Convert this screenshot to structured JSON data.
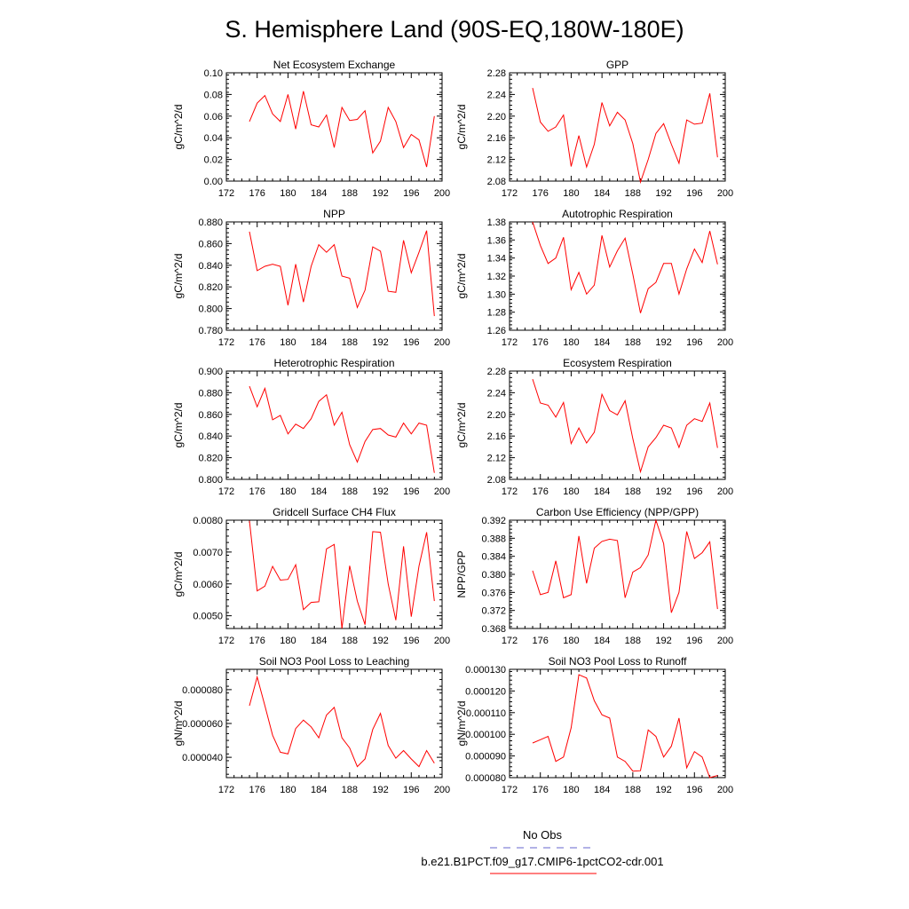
{
  "title": "S. Hemisphere Land (90S-EQ,180W-180E)",
  "colors": {
    "model": "#ff0000",
    "obs": "#6666cc"
  },
  "legend": {
    "obs_label": "No Obs",
    "model_label": "b.e21.B1PCT.f09_g17.CMIP6-1pctCO2-cdr.001"
  },
  "chart_data": [
    {
      "type": "line",
      "title": "Net Ecosystem Exchange",
      "ylabel": "gC/m^2/d",
      "xlim": [
        172,
        200
      ],
      "x_ticks": [
        "172",
        "176",
        "180",
        "184",
        "188",
        "192",
        "196",
        "200"
      ],
      "ylim": [
        0.0,
        0.1
      ],
      "y_ticks": [
        "0.00",
        "0.02",
        "0.04",
        "0.06",
        "0.08",
        "0.10"
      ],
      "series": [
        {
          "x": [
            175,
            176,
            177,
            178,
            179,
            180,
            181,
            182,
            183,
            184,
            185,
            186,
            187,
            188,
            189,
            190,
            191,
            192,
            193,
            194,
            195,
            196,
            197,
            198,
            199
          ],
          "values": [
            0.055,
            0.072,
            0.079,
            0.062,
            0.055,
            0.08,
            0.048,
            0.083,
            0.052,
            0.05,
            0.061,
            0.031,
            0.068,
            0.056,
            0.057,
            0.065,
            0.026,
            0.037,
            0.068,
            0.055,
            0.031,
            0.043,
            0.038,
            0.013,
            0.06
          ]
        }
      ]
    },
    {
      "type": "line",
      "title": "GPP",
      "ylabel": "gC/m^2/d",
      "xlim": [
        172,
        200
      ],
      "x_ticks": [
        "172",
        "176",
        "180",
        "184",
        "188",
        "192",
        "196",
        "200"
      ],
      "ylim": [
        2.08,
        2.28
      ],
      "y_ticks": [
        "2.08",
        "2.12",
        "2.16",
        "2.20",
        "2.24",
        "2.28"
      ],
      "series": [
        {
          "x": [
            175,
            176,
            177,
            178,
            179,
            180,
            181,
            182,
            183,
            184,
            185,
            186,
            187,
            188,
            189,
            190,
            191,
            192,
            193,
            194,
            195,
            196,
            197,
            198,
            199
          ],
          "values": [
            2.252,
            2.189,
            2.172,
            2.18,
            2.202,
            2.107,
            2.164,
            2.106,
            2.148,
            2.225,
            2.182,
            2.207,
            2.193,
            2.149,
            2.078,
            2.12,
            2.168,
            2.186,
            2.148,
            2.113,
            2.193,
            2.185,
            2.187,
            2.242,
            2.124
          ]
        }
      ]
    },
    {
      "type": "line",
      "title": "NPP",
      "ylabel": "gC/m^2/d",
      "xlim": [
        172,
        200
      ],
      "x_ticks": [
        "172",
        "176",
        "180",
        "184",
        "188",
        "192",
        "196",
        "200"
      ],
      "ylim": [
        0.78,
        0.88
      ],
      "y_ticks": [
        "0.780",
        "0.800",
        "0.820",
        "0.840",
        "0.860",
        "0.880"
      ],
      "series": [
        {
          "x": [
            175,
            176,
            177,
            178,
            179,
            180,
            181,
            182,
            183,
            184,
            185,
            186,
            187,
            188,
            189,
            190,
            191,
            192,
            193,
            194,
            195,
            196,
            197,
            198,
            199
          ],
          "values": [
            0.871,
            0.835,
            0.839,
            0.841,
            0.839,
            0.803,
            0.841,
            0.806,
            0.839,
            0.859,
            0.852,
            0.859,
            0.83,
            0.828,
            0.801,
            0.817,
            0.857,
            0.853,
            0.816,
            0.815,
            0.863,
            0.833,
            0.852,
            0.872,
            0.793
          ]
        }
      ]
    },
    {
      "type": "line",
      "title": "Autotrophic Respiration",
      "ylabel": "gC/m^2/d",
      "xlim": [
        172,
        200
      ],
      "x_ticks": [
        "172",
        "176",
        "180",
        "184",
        "188",
        "192",
        "196",
        "200"
      ],
      "ylim": [
        1.26,
        1.38
      ],
      "y_ticks": [
        "1.26",
        "1.28",
        "1.30",
        "1.32",
        "1.34",
        "1.36",
        "1.38"
      ],
      "series": [
        {
          "x": [
            175,
            176,
            177,
            178,
            179,
            180,
            181,
            182,
            183,
            184,
            185,
            186,
            187,
            188,
            189,
            190,
            191,
            192,
            193,
            194,
            195,
            196,
            197,
            198,
            199
          ],
          "values": [
            1.38,
            1.354,
            1.334,
            1.34,
            1.363,
            1.305,
            1.324,
            1.3,
            1.31,
            1.365,
            1.33,
            1.348,
            1.362,
            1.322,
            1.279,
            1.306,
            1.313,
            1.334,
            1.334,
            1.3,
            1.328,
            1.35,
            1.335,
            1.37,
            1.333
          ]
        }
      ]
    },
    {
      "type": "line",
      "title": "Heterotrophic Respiration",
      "ylabel": "gC/m^2/d",
      "xlim": [
        172,
        200
      ],
      "x_ticks": [
        "172",
        "176",
        "180",
        "184",
        "188",
        "192",
        "196",
        "200"
      ],
      "ylim": [
        0.8,
        0.9
      ],
      "y_ticks": [
        "0.800",
        "0.820",
        "0.840",
        "0.860",
        "0.880",
        "0.900"
      ],
      "series": [
        {
          "x": [
            175,
            176,
            177,
            178,
            179,
            180,
            181,
            182,
            183,
            184,
            185,
            186,
            187,
            188,
            189,
            190,
            191,
            192,
            193,
            194,
            195,
            196,
            197,
            198,
            199
          ],
          "values": [
            0.886,
            0.867,
            0.884,
            0.855,
            0.859,
            0.842,
            0.851,
            0.847,
            0.856,
            0.872,
            0.878,
            0.85,
            0.862,
            0.832,
            0.816,
            0.835,
            0.846,
            0.847,
            0.841,
            0.839,
            0.852,
            0.842,
            0.852,
            0.85,
            0.806
          ]
        }
      ]
    },
    {
      "type": "line",
      "title": "Ecosystem Respiration",
      "ylabel": "gC/m^2/d",
      "xlim": [
        172,
        200
      ],
      "x_ticks": [
        "172",
        "176",
        "180",
        "184",
        "188",
        "192",
        "196",
        "200"
      ],
      "ylim": [
        2.08,
        2.28
      ],
      "y_ticks": [
        "2.08",
        "2.12",
        "2.16",
        "2.20",
        "2.24",
        "2.28"
      ],
      "series": [
        {
          "x": [
            175,
            176,
            177,
            178,
            179,
            180,
            181,
            182,
            183,
            184,
            185,
            186,
            187,
            188,
            189,
            190,
            191,
            192,
            193,
            194,
            195,
            196,
            197,
            198,
            199
          ],
          "values": [
            2.265,
            2.221,
            2.217,
            2.195,
            2.222,
            2.146,
            2.175,
            2.147,
            2.167,
            2.237,
            2.207,
            2.199,
            2.225,
            2.155,
            2.094,
            2.14,
            2.157,
            2.18,
            2.175,
            2.139,
            2.18,
            2.192,
            2.187,
            2.221,
            2.138
          ]
        }
      ]
    },
    {
      "type": "line",
      "title": "Gridcell Surface CH4 Flux",
      "ylabel": "gC/m^2/d",
      "xlim": [
        172,
        200
      ],
      "x_ticks": [
        "172",
        "176",
        "180",
        "184",
        "188",
        "192",
        "196",
        "200"
      ],
      "ylim": [
        0.0046,
        0.008
      ],
      "y_ticks": [
        "0.0050",
        "0.0060",
        "0.0070",
        "0.0080"
      ],
      "series": [
        {
          "x": [
            175,
            176,
            177,
            178,
            179,
            180,
            181,
            182,
            183,
            184,
            185,
            186,
            187,
            188,
            189,
            190,
            191,
            192,
            193,
            194,
            195,
            196,
            197,
            198,
            199
          ],
          "values": [
            0.00798,
            0.00578,
            0.00593,
            0.00655,
            0.00612,
            0.00614,
            0.0066,
            0.00519,
            0.00542,
            0.00544,
            0.0071,
            0.00724,
            0.0046,
            0.00657,
            0.00546,
            0.00472,
            0.00764,
            0.00762,
            0.006,
            0.00486,
            0.00718,
            0.00497,
            0.00656,
            0.00762,
            0.00546
          ]
        }
      ]
    },
    {
      "type": "line",
      "title": "Carbon Use Efficiency (NPP/GPP)",
      "ylabel": "NPP/GPP",
      "xlim": [
        172,
        200
      ],
      "x_ticks": [
        "172",
        "176",
        "180",
        "184",
        "188",
        "192",
        "196",
        "200"
      ],
      "ylim": [
        0.368,
        0.392
      ],
      "y_ticks": [
        "0.368",
        "0.372",
        "0.376",
        "0.380",
        "0.384",
        "0.388",
        "0.392"
      ],
      "series": [
        {
          "x": [
            175,
            176,
            177,
            178,
            179,
            180,
            181,
            182,
            183,
            184,
            185,
            186,
            187,
            188,
            189,
            190,
            191,
            192,
            193,
            194,
            195,
            196,
            197,
            198,
            199
          ],
          "values": [
            0.3808,
            0.3755,
            0.376,
            0.383,
            0.3748,
            0.3755,
            0.3885,
            0.378,
            0.3858,
            0.3873,
            0.3878,
            0.3875,
            0.3748,
            0.3805,
            0.3815,
            0.3843,
            0.392,
            0.3868,
            0.3715,
            0.376,
            0.3895,
            0.3835,
            0.3848,
            0.3872,
            0.3723
          ]
        }
      ]
    },
    {
      "type": "line",
      "title": "Soil NO3 Pool Loss to Leaching",
      "ylabel": "gN/m^2/d",
      "xlim": [
        172,
        200
      ],
      "x_ticks": [
        "172",
        "176",
        "180",
        "184",
        "188",
        "192",
        "196",
        "200"
      ],
      "ylim": [
        2.8e-05,
        9.2e-05
      ],
      "y_ticks": [
        "0.000040",
        "0.000060",
        "0.000080"
      ],
      "series": [
        {
          "x": [
            175,
            176,
            177,
            178,
            179,
            180,
            181,
            182,
            183,
            184,
            185,
            186,
            187,
            188,
            189,
            190,
            191,
            192,
            193,
            194,
            195,
            196,
            197,
            198,
            199
          ],
          "values": [
            7.05e-05,
            8.75e-05,
            7.05e-05,
            5.3e-05,
            4.3e-05,
            4.2e-05,
            5.7e-05,
            6.2e-05,
            5.8e-05,
            5.15e-05,
            6.5e-05,
            6.95e-05,
            5.15e-05,
            4.55e-05,
            3.45e-05,
            3.9e-05,
            5.65e-05,
            6.6e-05,
            4.7e-05,
            3.95e-05,
            4.4e-05,
            3.9e-05,
            3.45e-05,
            4.4e-05,
            3.65e-05
          ]
        }
      ]
    },
    {
      "type": "line",
      "title": "Soil NO3 Pool Loss to Runoff",
      "ylabel": "gN/m^2/d",
      "xlim": [
        172,
        200
      ],
      "x_ticks": [
        "172",
        "176",
        "180",
        "184",
        "188",
        "192",
        "196",
        "200"
      ],
      "ylim": [
        8e-05,
        0.00013
      ],
      "y_ticks": [
        "0.000080",
        "0.000090",
        "0.000100",
        "0.000110",
        "0.000120",
        "0.000130"
      ],
      "series": [
        {
          "x": [
            175,
            176,
            177,
            178,
            179,
            180,
            181,
            182,
            183,
            184,
            185,
            186,
            187,
            188,
            189,
            190,
            191,
            192,
            193,
            194,
            195,
            196,
            197,
            198,
            199
          ],
          "values": [
            9.6e-05,
            9.75e-05,
            9.9e-05,
            8.75e-05,
            8.95e-05,
            0.000103,
            0.0001275,
            0.000126,
            0.0001155,
            0.000109,
            0.0001075,
            8.95e-05,
            8.75e-05,
            8.3e-05,
            8.32e-05,
            0.000102,
            9.9e-05,
            8.95e-05,
            9.45e-05,
            0.0001075,
            8.45e-05,
            9.2e-05,
            8.95e-05,
            8e-05,
            8.1e-05
          ]
        }
      ]
    }
  ]
}
